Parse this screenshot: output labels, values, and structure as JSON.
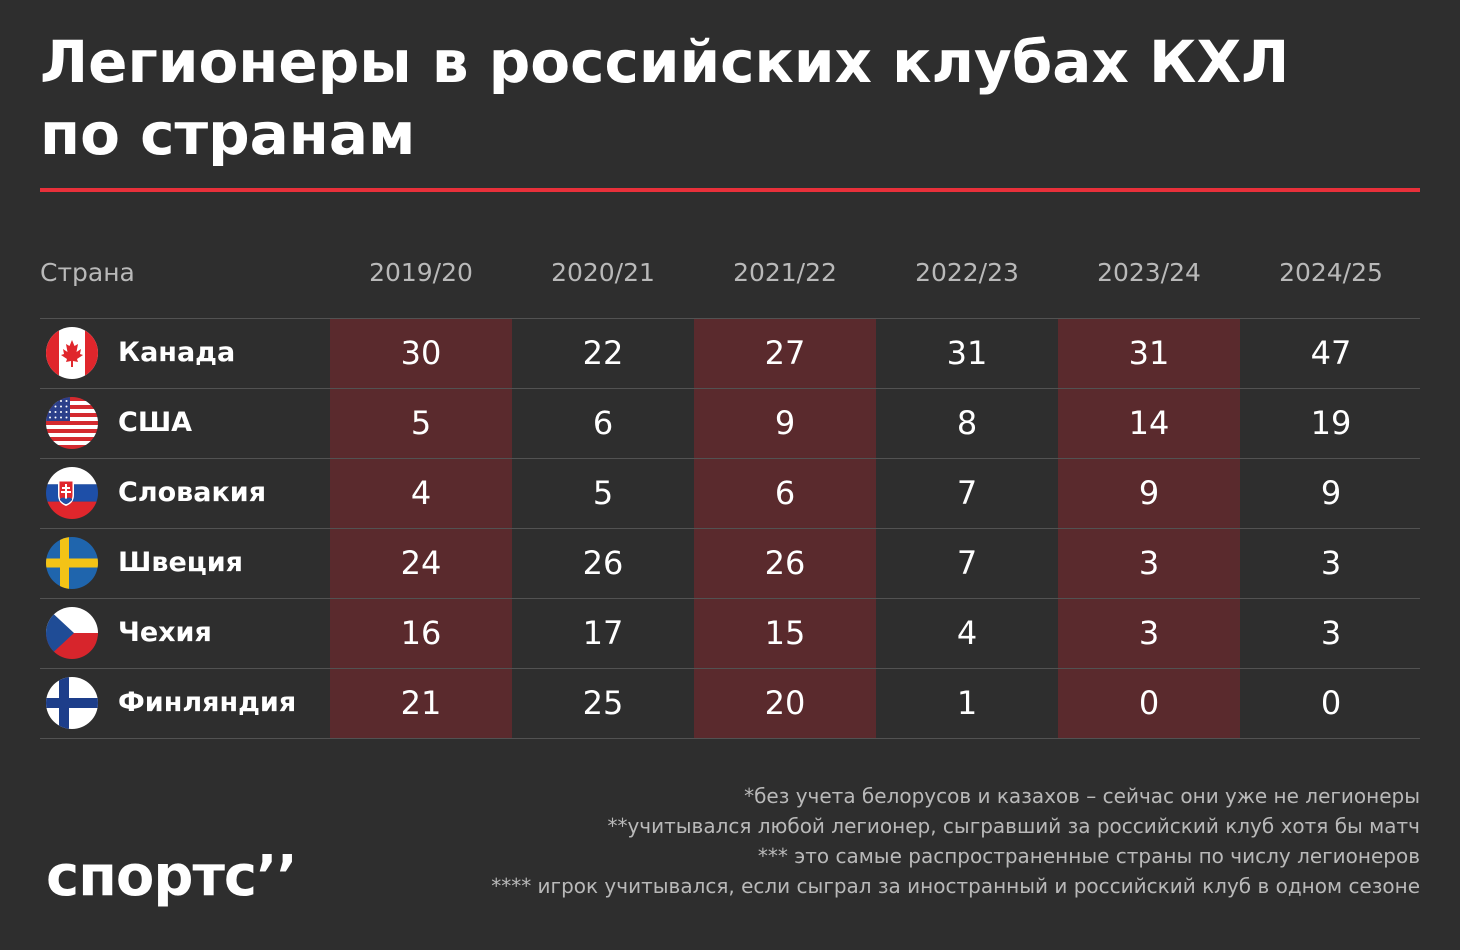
{
  "title_line1": "Легионеры в российских клубах КХЛ",
  "title_line2": "по странам",
  "accent_color": "#e8303a",
  "highlight_color": "#5a2a2d",
  "chart_data": {
    "type": "table",
    "columns_header": "Страна",
    "columns": [
      "2019/20",
      "2020/21",
      "2021/22",
      "2022/23",
      "2023/24",
      "2024/25"
    ],
    "highlighted_columns": [
      "2019/20",
      "2021/22",
      "2023/24"
    ],
    "rows": [
      {
        "country": "Канада",
        "flag": "canada-flag-icon",
        "values": [
          30,
          22,
          27,
          31,
          31,
          47
        ]
      },
      {
        "country": "США",
        "flag": "usa-flag-icon",
        "values": [
          5,
          6,
          9,
          8,
          14,
          19
        ]
      },
      {
        "country": "Словакия",
        "flag": "slovakia-flag-icon",
        "values": [
          4,
          5,
          6,
          7,
          9,
          9
        ]
      },
      {
        "country": "Швеция",
        "flag": "sweden-flag-icon",
        "values": [
          24,
          26,
          26,
          7,
          3,
          3
        ]
      },
      {
        "country": "Чехия",
        "flag": "czech-flag-icon",
        "values": [
          16,
          17,
          15,
          4,
          3,
          3
        ]
      },
      {
        "country": "Финляндия",
        "flag": "finland-flag-icon",
        "values": [
          21,
          25,
          20,
          1,
          0,
          0
        ]
      }
    ]
  },
  "notes": [
    "*без учета белорусов и казахов – сейчас они уже не легионеры",
    "**учитывался любой легионер, сыгравший за российский клуб хотя бы матч",
    "*** это самые распространенные страны по числу легионеров",
    "**** игрок учитывался, если сыграл за иностранный и российский клуб в одном сезоне"
  ],
  "logo_text": "спортс’’"
}
